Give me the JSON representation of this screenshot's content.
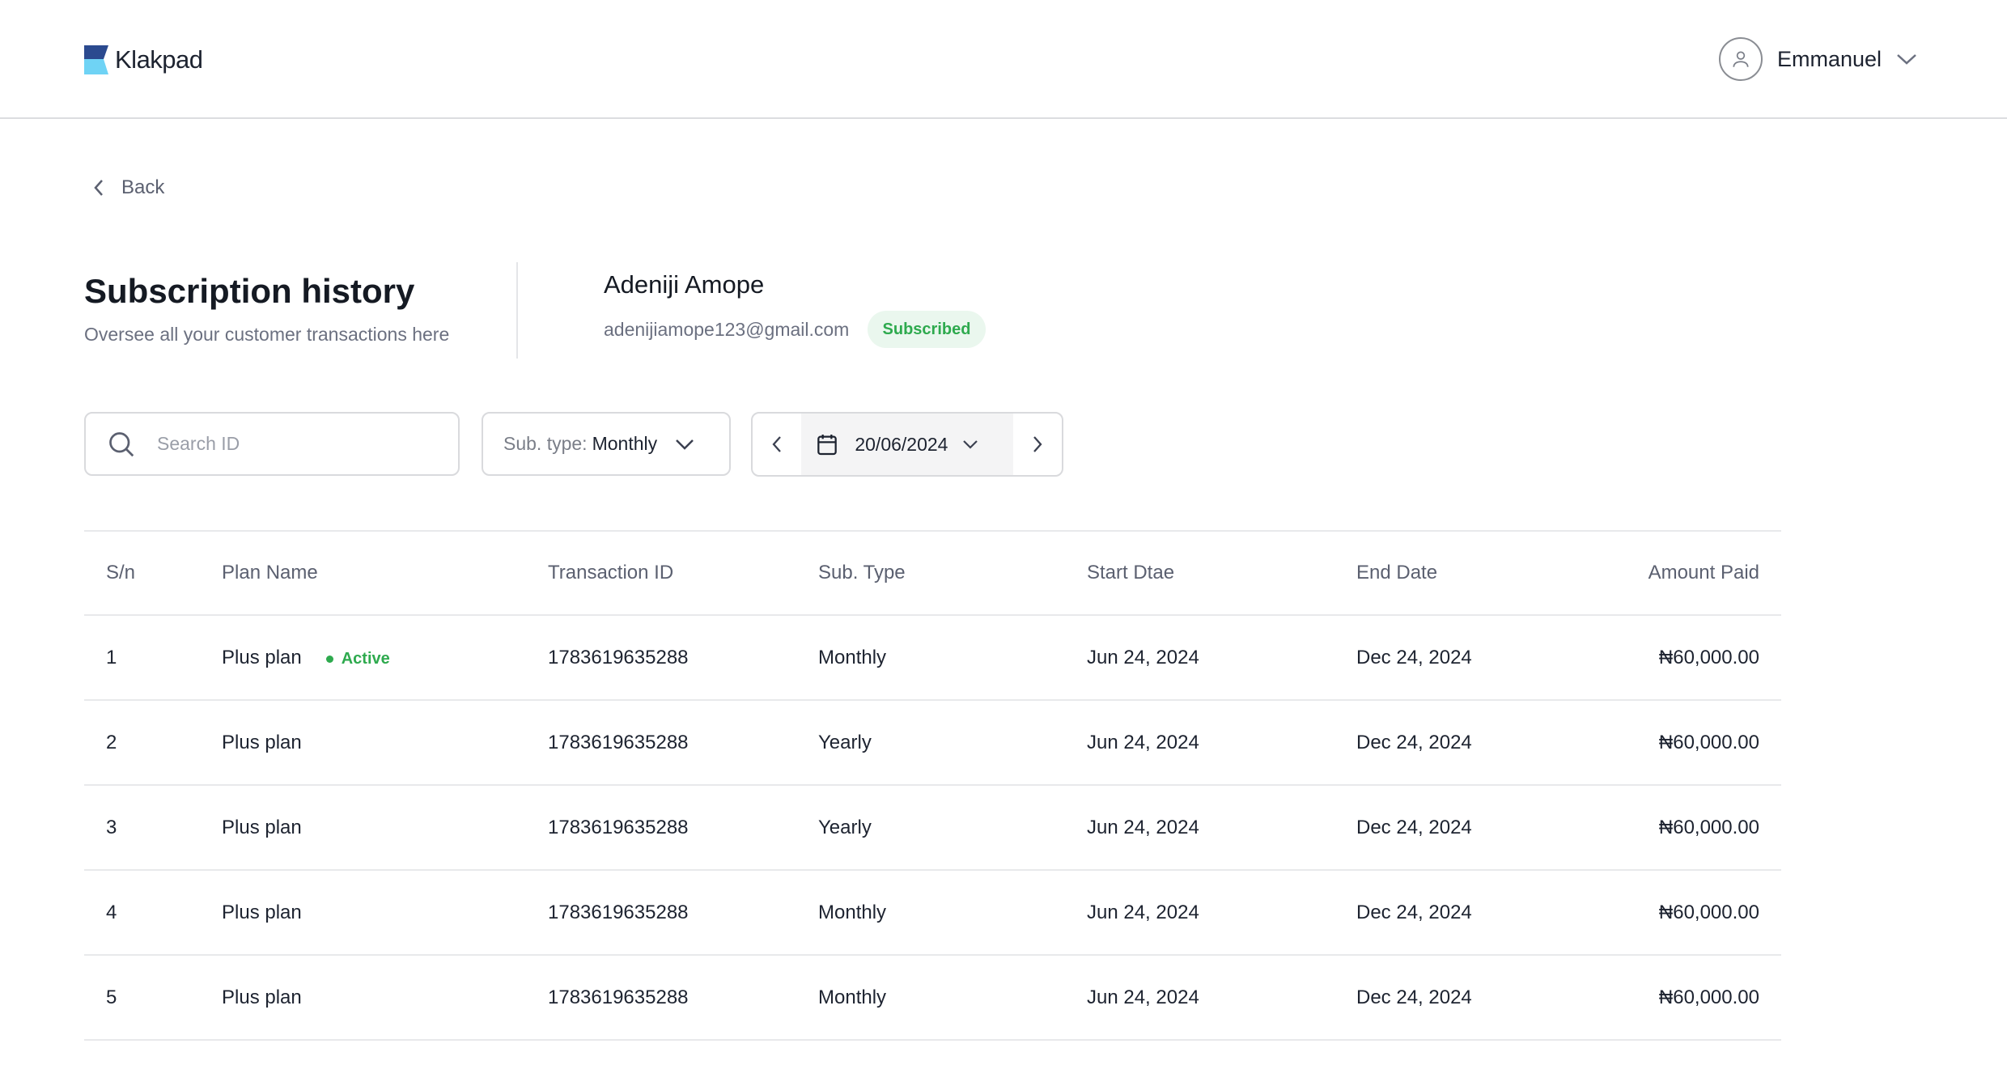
{
  "header": {
    "brand": "Klakpad",
    "user_name": "Emmanuel"
  },
  "nav": {
    "back_label": "Back"
  },
  "page": {
    "title": "Subscription history",
    "subtitle": "Oversee all your customer transactions here"
  },
  "customer": {
    "name": "Adeniji Amope",
    "email": "adenijiamope123@gmail.com",
    "status": "Subscribed"
  },
  "filters": {
    "search_placeholder": "Search ID",
    "subtype_label": "Sub. type:",
    "subtype_value": "Monthly",
    "date_value": "20/06/2024"
  },
  "colors": {
    "accent_green": "#2eaa4e",
    "logo_dark": "#2b4a8f",
    "logo_light": "#6fd3f5"
  },
  "table": {
    "columns": [
      "S/n",
      "Plan Name",
      "Transaction ID",
      "Sub. Type",
      "Start Dtae",
      "End Date",
      "Amount Paid"
    ],
    "rows": [
      {
        "sn": "1",
        "plan": "Plus plan",
        "status": "Active",
        "txn": "1783619635288",
        "type": "Monthly",
        "start": "Jun 24, 2024",
        "end": "Dec 24, 2024",
        "amount": "₦60,000.00"
      },
      {
        "sn": "2",
        "plan": "Plus plan",
        "status": "",
        "txn": "1783619635288",
        "type": "Yearly",
        "start": "Jun 24, 2024",
        "end": "Dec 24, 2024",
        "amount": "₦60,000.00"
      },
      {
        "sn": "3",
        "plan": "Plus plan",
        "status": "",
        "txn": "1783619635288",
        "type": "Yearly",
        "start": "Jun 24, 2024",
        "end": "Dec 24, 2024",
        "amount": "₦60,000.00"
      },
      {
        "sn": "4",
        "plan": "Plus plan",
        "status": "",
        "txn": "1783619635288",
        "type": "Monthly",
        "start": "Jun 24, 2024",
        "end": "Dec 24, 2024",
        "amount": "₦60,000.00"
      },
      {
        "sn": "5",
        "plan": "Plus plan",
        "status": "",
        "txn": "1783619635288",
        "type": "Monthly",
        "start": "Jun 24, 2024",
        "end": "Dec 24, 2024",
        "amount": "₦60,000.00"
      }
    ]
  }
}
